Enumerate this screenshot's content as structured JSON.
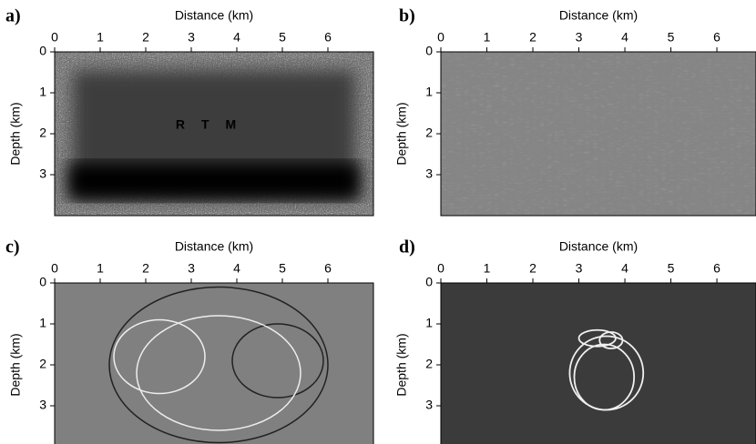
{
  "chart_data": [
    {
      "type": "image",
      "panel_label": "a)",
      "xlabel": "Distance (km)",
      "ylabel": "Depth (km)",
      "xlim": [
        0,
        7
      ],
      "ylim": [
        0,
        4
      ],
      "xticks": [
        0,
        1,
        2,
        3,
        4,
        5,
        6
      ],
      "yticks": [
        0,
        1,
        2,
        3
      ],
      "image_text": "RTM"
    },
    {
      "type": "image",
      "panel_label": "b)",
      "xlabel": "Distance (km)",
      "ylabel": "Depth (km)",
      "xlim": [
        0,
        6.85
      ],
      "ylim": [
        0,
        4
      ],
      "xticks": [
        0,
        1,
        2,
        3,
        4,
        5,
        6
      ],
      "yticks": [
        0,
        1,
        2,
        3
      ]
    },
    {
      "type": "image",
      "panel_label": "c)",
      "xlabel": "Distance (km)",
      "ylabel": "Depth (km)",
      "xlim": [
        0,
        7
      ],
      "ylim": [
        0,
        4
      ],
      "xticks": [
        0,
        1,
        2,
        3,
        4,
        5,
        6
      ],
      "yticks": [
        0,
        1,
        2,
        3
      ]
    },
    {
      "type": "image",
      "panel_label": "d)",
      "xlabel": "Distance (km)",
      "ylabel": "Depth (km)",
      "xlim": [
        0,
        6.85
      ],
      "ylim": [
        0,
        4
      ],
      "xticks": [
        0,
        1,
        2,
        3,
        4,
        5,
        6
      ],
      "yticks": [
        0,
        1,
        2,
        3
      ]
    }
  ]
}
